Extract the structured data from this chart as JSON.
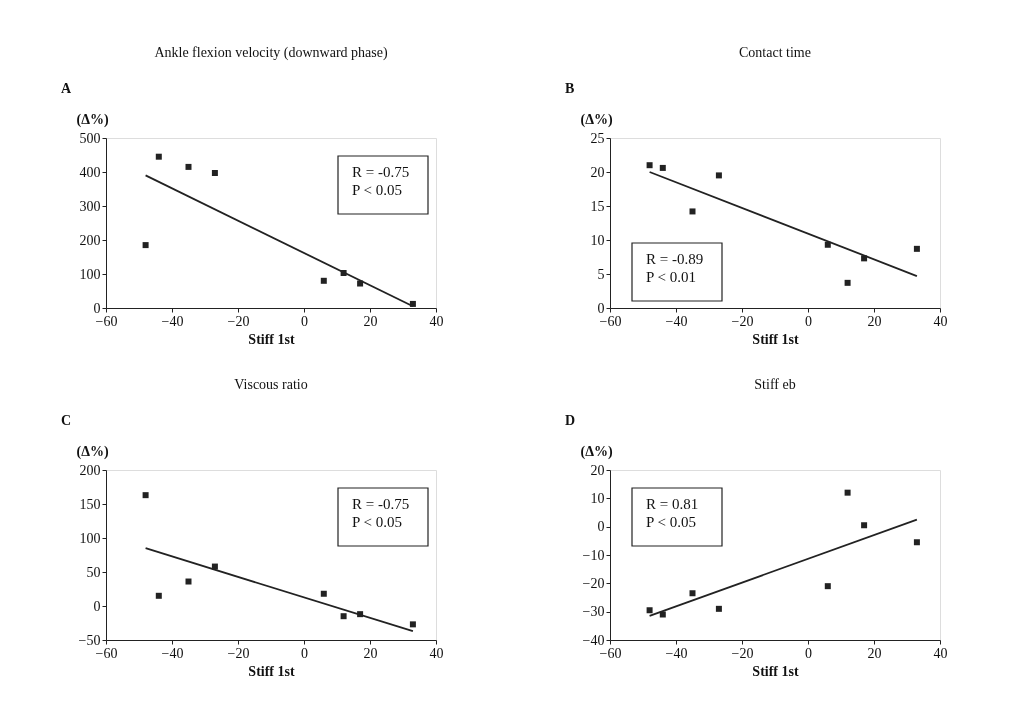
{
  "chart_data": [
    {
      "type": "scatter",
      "title": "Ankle flexion velocity (downward phase)",
      "xlabel": "Stiff 1st",
      "ylabel": "(Δ%)",
      "xlim": [
        -60,
        40
      ],
      "xticks": [
        -60,
        -40,
        -20,
        0,
        20,
        40
      ],
      "ylim": [
        0,
        500
      ],
      "yticks": [
        0,
        100,
        200,
        300,
        400,
        500
      ],
      "annotations": [
        "A",
        "R = -0.75",
        "P < 0.05"
      ],
      "series": [
        {
          "color": "#222222",
          "marker": "square",
          "x": [
            -48,
            -44,
            -35,
            -27,
            6,
            12,
            17,
            33
          ],
          "values": [
            185,
            445,
            415,
            397,
            80,
            103,
            72,
            12
          ]
        },
        {
          "type": "line",
          "color": "#222222",
          "line_style": "solid",
          "x": [
            -48,
            33
          ],
          "values": [
            390,
            5
          ]
        }
      ]
    },
    {
      "type": "scatter",
      "title": "Contact time",
      "xlabel": "Stiff 1st",
      "ylabel": "(Δ%)",
      "xlim": [
        -60,
        40
      ],
      "xticks": [
        -60,
        -40,
        -20,
        0,
        20,
        40
      ],
      "ylim": [
        0,
        25
      ],
      "yticks": [
        0,
        5,
        10,
        15,
        20,
        25
      ],
      "annotations": [
        "B",
        "R = -0.89",
        "P < 0.01"
      ],
      "series": [
        {
          "color": "#222222",
          "marker": "square",
          "x": [
            -48,
            -44,
            -35,
            -27,
            6,
            12,
            17,
            33
          ],
          "values": [
            21,
            20.6,
            14.2,
            19.5,
            9.3,
            3.7,
            7.3,
            8.7
          ]
        },
        {
          "type": "line",
          "color": "#222222",
          "line_style": "solid",
          "x": [
            -48,
            33
          ],
          "values": [
            20,
            4.7
          ]
        }
      ]
    },
    {
      "type": "scatter",
      "title": "Viscous ratio",
      "xlabel": "Stiff 1st",
      "ylabel": "(Δ%)",
      "xlim": [
        -60,
        40
      ],
      "xticks": [
        -60,
        -40,
        -20,
        0,
        20,
        40
      ],
      "ylim": [
        -50,
        200
      ],
      "yticks": [
        -50,
        0,
        50,
        100,
        150,
        200
      ],
      "annotations": [
        "C",
        "R = -0.75",
        "P < 0.05"
      ],
      "series": [
        {
          "color": "#222222",
          "marker": "square",
          "x": [
            -48,
            -44,
            -35,
            -27,
            6,
            12,
            17,
            33
          ],
          "values": [
            163,
            15,
            36,
            58,
            18,
            -15,
            -12,
            -27
          ]
        },
        {
          "type": "line",
          "color": "#222222",
          "line_style": "solid",
          "x": [
            -48,
            33
          ],
          "values": [
            85,
            -37
          ]
        }
      ]
    },
    {
      "type": "scatter",
      "title": "Stiff eb",
      "xlabel": "Stiff 1st",
      "ylabel": "(Δ%)",
      "xlim": [
        -60,
        40
      ],
      "xticks": [
        -60,
        -40,
        -20,
        0,
        20,
        40
      ],
      "ylim": [
        -40,
        20
      ],
      "yticks": [
        -40,
        -30,
        -20,
        -10,
        0,
        10,
        20
      ],
      "annotations": [
        "D",
        "R = 0.81",
        "P < 0.05"
      ],
      "series": [
        {
          "color": "#222222",
          "marker": "square",
          "x": [
            -48,
            -44,
            -35,
            -27,
            6,
            12,
            17,
            33
          ],
          "values": [
            -29.5,
            -31,
            -23.5,
            -29,
            -21,
            12,
            0.5,
            -5.5
          ]
        },
        {
          "type": "line",
          "color": "#222222",
          "line_style": "solid",
          "x": [
            -48,
            33
          ],
          "values": [
            -31.5,
            2.5
          ]
        }
      ]
    }
  ]
}
